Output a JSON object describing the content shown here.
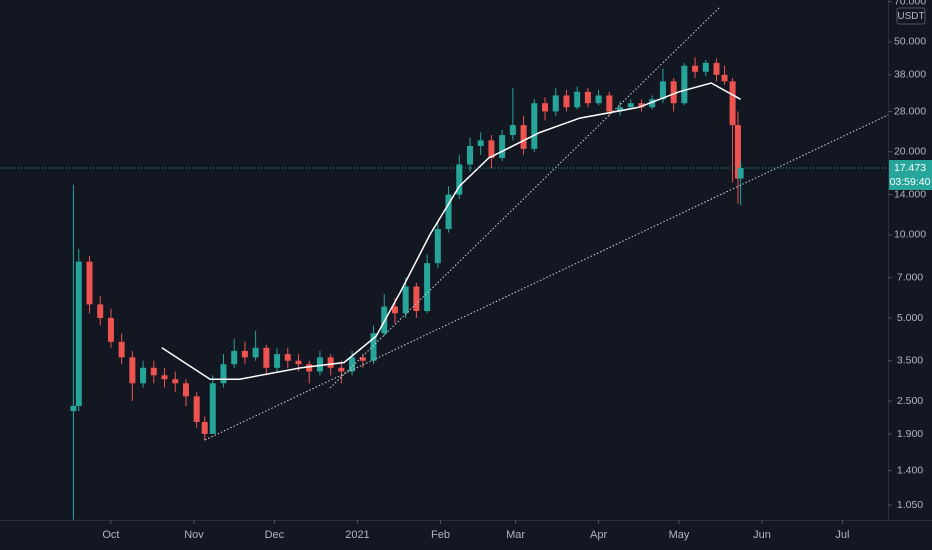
{
  "chart_data": {
    "type": "candlestick",
    "currency": "USDT",
    "last_price": 17.473,
    "countdown": "03:59:40",
    "log_scale": true,
    "up_color": "#26a69a",
    "down_color": "#ef5350",
    "ma_color": "#ffffff",
    "xlim": [
      -41.4,
      290
    ],
    "xticks": [
      {
        "value": 0,
        "label": "Oct"
      },
      {
        "value": 31,
        "label": "Nov"
      },
      {
        "value": 61,
        "label": "Dec"
      },
      {
        "value": 92,
        "label": "2021"
      },
      {
        "value": 123,
        "label": "Feb"
      },
      {
        "value": 151,
        "label": "Mar"
      },
      {
        "value": 182,
        "label": "Apr"
      },
      {
        "value": 212,
        "label": "May"
      },
      {
        "value": 243,
        "label": "Jun"
      },
      {
        "value": 273,
        "label": "Jul"
      }
    ],
    "ylim": [
      0.927,
      70.96
    ],
    "yticks": [
      {
        "value": 70,
        "label": "70.000"
      },
      {
        "value": 50,
        "label": "50.000"
      },
      {
        "value": 38,
        "label": "38.000"
      },
      {
        "value": 28,
        "label": "28.000"
      },
      {
        "value": 20,
        "label": "20.000"
      },
      {
        "value": 14,
        "label": "14.000"
      },
      {
        "value": 10,
        "label": "10.000"
      },
      {
        "value": 7,
        "label": "7.000"
      },
      {
        "value": 5,
        "label": "5.000"
      },
      {
        "value": 3.5,
        "label": "3.500"
      },
      {
        "value": 2.5,
        "label": "2.500"
      },
      {
        "value": 1.9,
        "label": "1.900"
      },
      {
        "value": 1.4,
        "label": "1.400"
      },
      {
        "value": 1.05,
        "label": "1.050"
      }
    ],
    "x": [
      -14,
      -12,
      -8,
      -4,
      0,
      4,
      8,
      12,
      16,
      20,
      24,
      28,
      32,
      35,
      38,
      42,
      46,
      50,
      54,
      58,
      62,
      66,
      70,
      74,
      78,
      82,
      86,
      90,
      94,
      98,
      102,
      106,
      110,
      114,
      118,
      122,
      126,
      130,
      134,
      138,
      142,
      146,
      150,
      154,
      158,
      162,
      166,
      170,
      174,
      178,
      182,
      186,
      190,
      194,
      198,
      202,
      206,
      210,
      214,
      218,
      222,
      226,
      229,
      232,
      234,
      235
    ],
    "open": [
      2.3,
      2.4,
      8.0,
      5.6,
      5.0,
      4.1,
      3.6,
      2.9,
      3.3,
      3.1,
      3.0,
      2.9,
      2.6,
      2.1,
      1.9,
      2.9,
      3.4,
      3.8,
      3.6,
      3.9,
      3.3,
      3.7,
      3.5,
      3.4,
      3.2,
      3.6,
      3.3,
      3.2,
      3.6,
      3.5,
      4.4,
      5.5,
      5.2,
      6.5,
      5.3,
      7.9,
      10.5,
      14.0,
      18.0,
      21.0,
      22.0,
      19.0,
      23.0,
      25.0,
      20.5,
      30.0,
      28.0,
      32.0,
      29.0,
      33.0,
      30.0,
      32.0,
      28.0,
      29.0,
      30.0,
      29.0,
      31.0,
      36.0,
      30.0,
      41.0,
      39.0,
      42.0,
      38.0,
      36.0,
      25.0,
      16.0
    ],
    "high": [
      15.2,
      8.9,
      8.4,
      6.0,
      5.4,
      4.4,
      3.8,
      3.5,
      3.5,
      3.3,
      3.2,
      3.0,
      2.7,
      2.2,
      3.1,
      3.7,
      4.2,
      4.1,
      4.5,
      4.0,
      3.9,
      3.9,
      3.7,
      3.5,
      3.8,
      3.7,
      3.5,
      3.8,
      3.7,
      4.7,
      6.1,
      5.9,
      7.0,
      6.7,
      8.5,
      11.3,
      15.0,
      19.5,
      22.5,
      23.5,
      23.0,
      24.0,
      34.0,
      27.0,
      31.0,
      31.5,
      34.0,
      33.5,
      34.5,
      34.0,
      33.5,
      33.0,
      30.5,
      31.0,
      31.0,
      32.0,
      40.0,
      37.0,
      42.0,
      44.0,
      43.0,
      43.5,
      41.0,
      37.0,
      28.0,
      18.5
    ],
    "low": [
      0.93,
      2.3,
      5.2,
      4.7,
      3.9,
      3.4,
      2.5,
      2.8,
      2.9,
      2.8,
      2.7,
      2.4,
      2.0,
      1.8,
      1.9,
      2.8,
      3.3,
      3.4,
      3.5,
      3.1,
      3.2,
      3.3,
      3.2,
      2.9,
      3.1,
      3.1,
      2.9,
      3.1,
      3.3,
      3.4,
      4.3,
      4.8,
      5.0,
      5.0,
      5.2,
      7.6,
      10.2,
      13.5,
      17.0,
      19.5,
      17.5,
      18.5,
      22.0,
      19.5,
      20.0,
      26.0,
      27.0,
      28.0,
      28.5,
      29.0,
      29.5,
      27.0,
      27.0,
      28.5,
      28.0,
      28.5,
      30.0,
      28.0,
      29.5,
      37.0,
      37.5,
      36.0,
      35.0,
      15.5,
      13.0,
      12.8
    ],
    "close": [
      2.4,
      8.0,
      5.6,
      5.0,
      4.1,
      3.6,
      2.9,
      3.3,
      3.1,
      3.0,
      2.9,
      2.6,
      2.1,
      1.9,
      2.9,
      3.4,
      3.8,
      3.6,
      3.9,
      3.3,
      3.7,
      3.5,
      3.4,
      3.2,
      3.6,
      3.3,
      3.2,
      3.6,
      3.5,
      4.4,
      5.5,
      5.2,
      6.5,
      5.3,
      7.9,
      10.5,
      14.0,
      18.0,
      21.0,
      22.0,
      19.0,
      23.0,
      25.0,
      20.5,
      30.0,
      28.0,
      32.0,
      29.0,
      33.0,
      30.0,
      32.0,
      28.0,
      29.0,
      30.0,
      29.0,
      31.0,
      36.0,
      30.0,
      41.0,
      39.0,
      42.0,
      38.0,
      36.0,
      25.0,
      16.0,
      17.473
    ],
    "ma_x": [
      19,
      37,
      48,
      71,
      87,
      99,
      108,
      119,
      130,
      141,
      160,
      175,
      197,
      212,
      224,
      235
    ],
    "ma_values": [
      3.9,
      3.0,
      3.0,
      3.3,
      3.45,
      4.3,
      6.2,
      10,
      15,
      19,
      23.5,
      26.5,
      29,
      33,
      35.5,
      31
    ]
  }
}
